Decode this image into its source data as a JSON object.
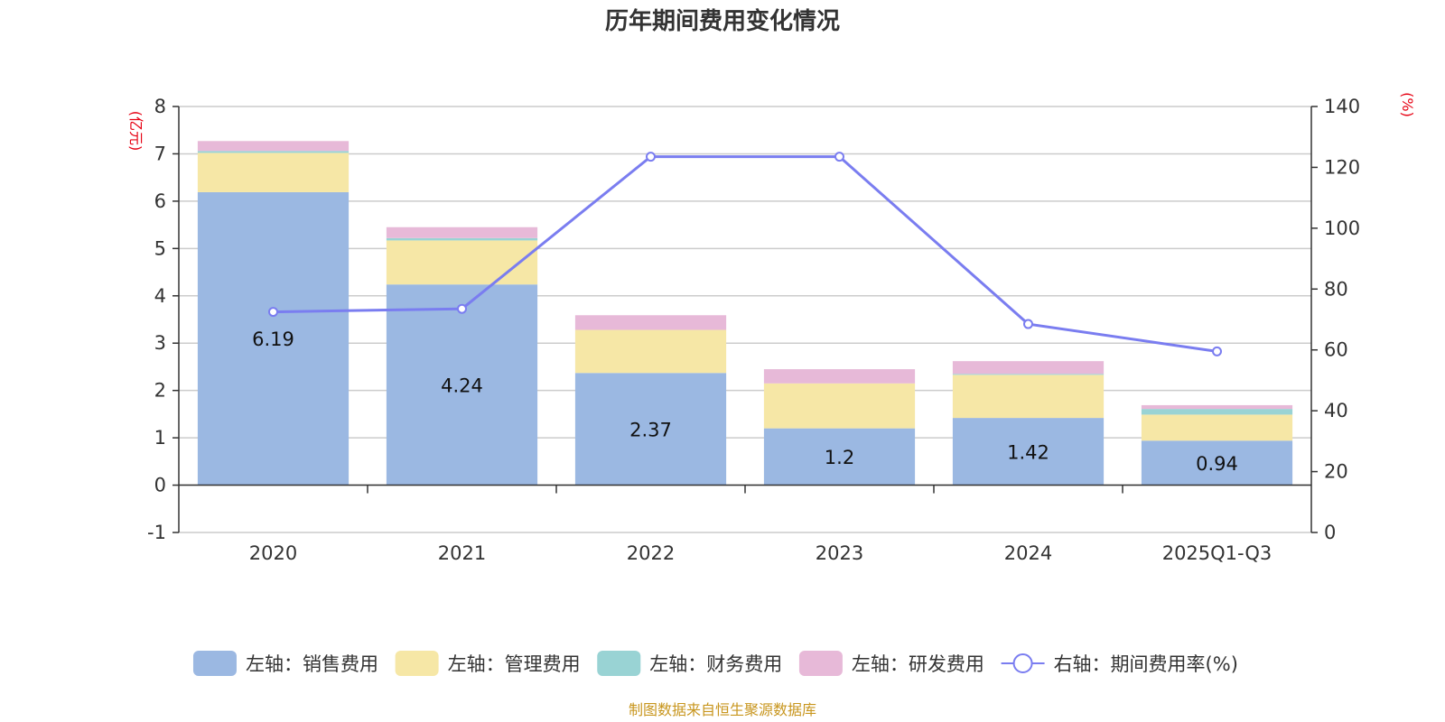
{
  "chart_data": {
    "type": "bar",
    "subtype": "stacked-bar-with-line",
    "title": "历年期间费用变化情况",
    "categories": [
      "2020",
      "2021",
      "2022",
      "2023",
      "2024",
      "2025Q1-Q3"
    ],
    "left_axis": {
      "unit": "(亿元)",
      "ylim": [
        -1,
        8
      ],
      "ticks": [
        "-1",
        "0",
        "1",
        "2",
        "3",
        "4",
        "5",
        "6",
        "7",
        "8"
      ]
    },
    "right_axis": {
      "unit": "(%)",
      "ylim": [
        0,
        140
      ],
      "ticks": [
        "0",
        "20",
        "40",
        "60",
        "80",
        "100",
        "120",
        "140"
      ]
    },
    "series": [
      {
        "name": "左轴：销售费用",
        "axis": "left",
        "kind": "bar",
        "color": "#9bb8e2",
        "values": [
          6.19,
          4.24,
          2.37,
          1.2,
          1.42,
          0.94
        ],
        "labels": [
          "6.19",
          "4.24",
          "2.37",
          "1.2",
          "1.42",
          "0.94"
        ]
      },
      {
        "name": "左轴：管理费用",
        "axis": "left",
        "kind": "bar",
        "color": "#f6e7a6",
        "values": [
          0.83,
          0.93,
          0.91,
          0.95,
          0.91,
          0.55
        ]
      },
      {
        "name": "左轴：财务费用",
        "axis": "left",
        "kind": "bar",
        "color": "#99d3d4",
        "values": [
          0.04,
          0.05,
          0.0,
          0.0,
          0.02,
          0.12
        ]
      },
      {
        "name": "左轴：研发费用",
        "axis": "left",
        "kind": "bar",
        "color": "#e7b9d8",
        "values": [
          0.21,
          0.23,
          0.31,
          0.3,
          0.27,
          0.08
        ]
      },
      {
        "name": "右轴：期间费用率(%)",
        "axis": "right",
        "kind": "line",
        "color": "#7a7df0",
        "values": [
          72.5,
          73.5,
          123.5,
          123.5,
          68.5,
          59.5
        ]
      }
    ]
  },
  "footer": {
    "source": "制图数据来自恒生聚源数据库"
  }
}
